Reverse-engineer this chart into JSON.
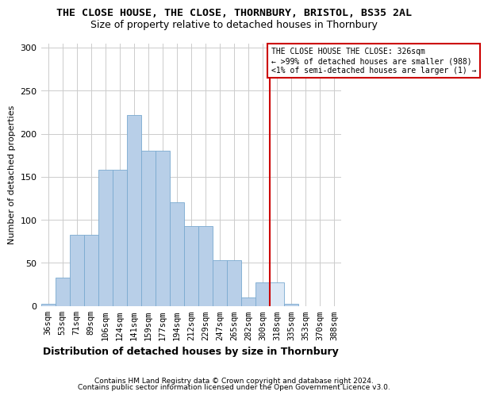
{
  "title": "THE CLOSE HOUSE, THE CLOSE, THORNBURY, BRISTOL, BS35 2AL",
  "subtitle": "Size of property relative to detached houses in Thornbury",
  "xlabel": "Distribution of detached houses by size in Thornbury",
  "ylabel": "Number of detached properties",
  "footnote1": "Contains HM Land Registry data © Crown copyright and database right 2024.",
  "footnote2": "Contains public sector information licensed under the Open Government Licence v3.0.",
  "categories": [
    "36sqm",
    "53sqm",
    "71sqm",
    "89sqm",
    "106sqm",
    "124sqm",
    "141sqm",
    "159sqm",
    "177sqm",
    "194sqm",
    "212sqm",
    "229sqm",
    "247sqm",
    "265sqm",
    "282sqm",
    "300sqm",
    "318sqm",
    "335sqm",
    "353sqm",
    "370sqm",
    "388sqm"
  ],
  "values": [
    3,
    33,
    83,
    83,
    158,
    158,
    222,
    180,
    180,
    120,
    93,
    93,
    53,
    53,
    10,
    27,
    27,
    3,
    0,
    0,
    0
  ],
  "highlight_index": 16,
  "bar_color": "#b8cfe8",
  "bar_edge_color": "#7aaad0",
  "highlight_color": "#dce8f5",
  "annotation_line1": "THE CLOSE HOUSE THE CLOSE: 326sqm",
  "annotation_line2": "← >99% of detached houses are smaller (988)",
  "annotation_line3": "<1% of semi-detached houses are larger (1) →",
  "annotation_box_color": "#ffffff",
  "annotation_border_color": "#cc0000",
  "vline_color": "#cc0000",
  "ylim": [
    0,
    305
  ],
  "yticks": [
    0,
    50,
    100,
    150,
    200,
    250,
    300
  ],
  "background_color": "#ffffff",
  "grid_color": "#cccccc"
}
